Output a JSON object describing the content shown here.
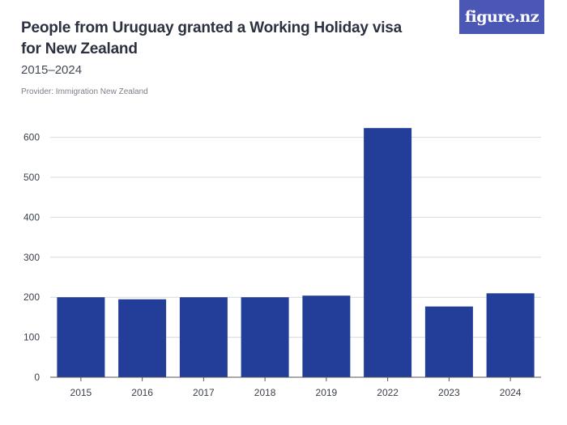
{
  "header": {
    "title": "People from Uruguay granted a Working Holiday visa for New Zealand",
    "subtitle": "2015–2024",
    "provider": "Provider: Immigration New Zealand",
    "logo_text": "figure.nz"
  },
  "colors": {
    "bar": "#233e98",
    "grid": "#d9d9d9",
    "axis": "#555555",
    "logo_bg": "#4b57b5"
  },
  "chart_data": {
    "type": "bar",
    "title": "People from Uruguay granted a Working Holiday visa for New Zealand",
    "subtitle": "2015–2024",
    "xlabel": "",
    "ylabel": "",
    "categories": [
      "2015",
      "2016",
      "2017",
      "2018",
      "2019",
      "2022",
      "2023",
      "2024"
    ],
    "values": [
      200,
      195,
      200,
      200,
      204,
      623,
      177,
      210
    ],
    "ylim": [
      0,
      600
    ],
    "yticks": [
      0,
      100,
      200,
      300,
      400,
      500,
      600
    ],
    "grid": true,
    "legend": "none"
  }
}
